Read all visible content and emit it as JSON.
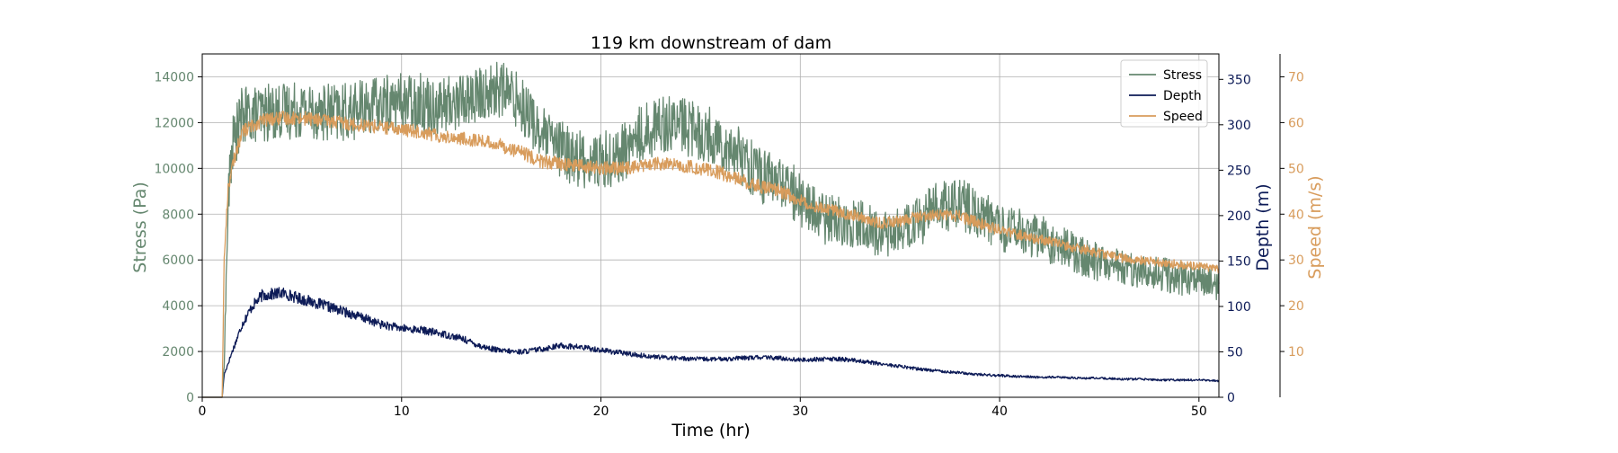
{
  "chart_data": {
    "type": "line",
    "title": "119 km downstream of dam",
    "xlabel": "Time (hr)",
    "xlim": [
      0,
      51
    ],
    "xticks": [
      0,
      10,
      20,
      30,
      40,
      50
    ],
    "grid": true,
    "legend_position": "top-right",
    "axes": {
      "stress": {
        "label": "Stress (Pa)",
        "ylim": [
          0,
          15000
        ],
        "ticks": [
          0,
          2000,
          4000,
          6000,
          8000,
          10000,
          12000,
          14000
        ],
        "color": "#65876f"
      },
      "depth": {
        "label": "Depth (m)",
        "ylim": [
          0,
          378
        ],
        "ticks": [
          0,
          50,
          100,
          150,
          200,
          250,
          300,
          350
        ],
        "color": "#0d1b57"
      },
      "speed": {
        "label": "Speed (m/s)",
        "ylim": [
          0,
          75
        ],
        "ticks": [
          10,
          20,
          30,
          40,
          50,
          60,
          70
        ],
        "color": "#d89c5c"
      }
    },
    "series": [
      {
        "name": "Stress",
        "axis": "stress",
        "color": "#65876f",
        "points": [
          [
            0,
            0
          ],
          [
            1.0,
            0
          ],
          [
            1.1,
            1500
          ],
          [
            1.3,
            8500
          ],
          [
            1.5,
            11000
          ],
          [
            2,
            12300
          ],
          [
            3,
            12400
          ],
          [
            4,
            12500
          ],
          [
            5,
            12600
          ],
          [
            6,
            12500
          ],
          [
            7,
            12400
          ],
          [
            8,
            12600
          ],
          [
            9,
            12800
          ],
          [
            10,
            12900
          ],
          [
            11,
            12900
          ],
          [
            12,
            12700
          ],
          [
            13,
            13000
          ],
          [
            14,
            13200
          ],
          [
            15,
            13500
          ],
          [
            16,
            12900
          ],
          [
            17,
            11500
          ],
          [
            18,
            10800
          ],
          [
            19,
            10400
          ],
          [
            20,
            10300
          ],
          [
            21,
            10600
          ],
          [
            22,
            11500
          ],
          [
            23,
            12000
          ],
          [
            24,
            11900
          ],
          [
            25,
            11600
          ],
          [
            26,
            11200
          ],
          [
            27,
            10600
          ],
          [
            28,
            9700
          ],
          [
            29,
            9400
          ],
          [
            30,
            8700
          ],
          [
            31,
            7800
          ],
          [
            32,
            7700
          ],
          [
            33,
            7600
          ],
          [
            34,
            7100
          ],
          [
            35,
            7300
          ],
          [
            36,
            7700
          ],
          [
            37,
            8400
          ],
          [
            38,
            8400
          ],
          [
            39,
            8000
          ],
          [
            40,
            7400
          ],
          [
            41,
            7200
          ],
          [
            42,
            7000
          ],
          [
            43,
            6600
          ],
          [
            44,
            6200
          ],
          [
            45,
            5900
          ],
          [
            46,
            5700
          ],
          [
            47,
            5500
          ],
          [
            48,
            5400
          ],
          [
            49,
            5200
          ],
          [
            50,
            5100
          ],
          [
            51,
            4950
          ]
        ]
      },
      {
        "name": "Depth",
        "axis": "depth",
        "color": "#0d1b57",
        "points": [
          [
            0,
            0
          ],
          [
            1.0,
            0
          ],
          [
            1.1,
            25
          ],
          [
            1.5,
            50
          ],
          [
            2,
            80
          ],
          [
            2.5,
            100
          ],
          [
            3,
            112
          ],
          [
            4,
            115
          ],
          [
            5,
            108
          ],
          [
            6,
            102
          ],
          [
            7,
            95
          ],
          [
            8,
            88
          ],
          [
            9,
            80
          ],
          [
            10,
            76
          ],
          [
            11,
            74
          ],
          [
            12,
            70
          ],
          [
            13,
            65
          ],
          [
            14,
            56
          ],
          [
            15,
            51
          ],
          [
            16,
            50
          ],
          [
            17,
            53
          ],
          [
            18,
            57
          ],
          [
            19,
            55
          ],
          [
            20,
            52
          ],
          [
            21,
            49
          ],
          [
            22,
            46
          ],
          [
            23,
            44
          ],
          [
            24,
            43
          ],
          [
            25,
            42
          ],
          [
            26,
            42
          ],
          [
            27,
            43
          ],
          [
            28,
            44
          ],
          [
            29,
            43
          ],
          [
            30,
            41
          ],
          [
            31,
            42
          ],
          [
            32,
            42
          ],
          [
            33,
            40
          ],
          [
            34,
            37
          ],
          [
            35,
            34
          ],
          [
            36,
            31
          ],
          [
            37,
            29
          ],
          [
            38,
            27
          ],
          [
            39,
            25
          ],
          [
            40,
            24
          ],
          [
            41,
            23
          ],
          [
            42,
            22
          ],
          [
            43,
            22
          ],
          [
            44,
            21
          ],
          [
            45,
            21
          ],
          [
            46,
            20
          ],
          [
            47,
            20
          ],
          [
            48,
            19
          ],
          [
            49,
            19
          ],
          [
            50,
            19
          ],
          [
            51,
            18
          ]
        ]
      },
      {
        "name": "Speed",
        "axis": "speed",
        "color": "#d89c5c",
        "points": [
          [
            0,
            0
          ],
          [
            1.0,
            0
          ],
          [
            1.1,
            30
          ],
          [
            1.3,
            46
          ],
          [
            1.6,
            52
          ],
          [
            2,
            58
          ],
          [
            3,
            60.5
          ],
          [
            4,
            61
          ],
          [
            5,
            61
          ],
          [
            6,
            60.5
          ],
          [
            7,
            60
          ],
          [
            8,
            59.5
          ],
          [
            9,
            59
          ],
          [
            10,
            58.5
          ],
          [
            11,
            58
          ],
          [
            12,
            57
          ],
          [
            13,
            56.5
          ],
          [
            14,
            56
          ],
          [
            15,
            55
          ],
          [
            16,
            53.5
          ],
          [
            17,
            51.5
          ],
          [
            18,
            51
          ],
          [
            19,
            50.5
          ],
          [
            20,
            50
          ],
          [
            21,
            50
          ],
          [
            22,
            50.5
          ],
          [
            23,
            51
          ],
          [
            24,
            50.5
          ],
          [
            25,
            50
          ],
          [
            26,
            49
          ],
          [
            27,
            47.5
          ],
          [
            28,
            46
          ],
          [
            29,
            45
          ],
          [
            30,
            43
          ],
          [
            31,
            41.5
          ],
          [
            32,
            40.5
          ],
          [
            33,
            39.5
          ],
          [
            34,
            38
          ],
          [
            35,
            38.5
          ],
          [
            36,
            39.5
          ],
          [
            37,
            40
          ],
          [
            38,
            39.5
          ],
          [
            39,
            38
          ],
          [
            40,
            36.5
          ],
          [
            41,
            35.5
          ],
          [
            42,
            34.5
          ],
          [
            43,
            33.5
          ],
          [
            44,
            32.5
          ],
          [
            45,
            31.5
          ],
          [
            46,
            30.5
          ],
          [
            47,
            30
          ],
          [
            48,
            29.5
          ],
          [
            49,
            29
          ],
          [
            50,
            28.5
          ],
          [
            51,
            28
          ]
        ]
      }
    ]
  }
}
